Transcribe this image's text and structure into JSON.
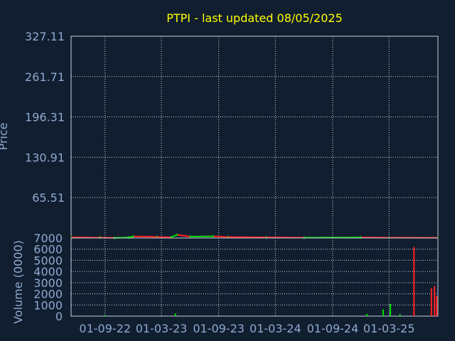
{
  "colors": {
    "background": "#111e30",
    "title": "#ffff00",
    "axis_text": "#8fa9cf",
    "grid": "#c8d2e0",
    "up": "#00dd00",
    "down": "#ff2020"
  },
  "chart_data": [
    {
      "type": "line",
      "title": "PTPI - last updated 08/05/2025",
      "ylabel": "Price",
      "ylim": [
        0,
        327.11
      ],
      "yticks": [
        65.51,
        130.91,
        196.31,
        261.71,
        327.11
      ],
      "ytick_labels": [
        "65.51",
        "130.91",
        "196.31",
        "261.71",
        "327.11"
      ],
      "grid": true,
      "x_range": [
        "2022-05-15",
        "2025-08-05"
      ],
      "series": [
        {
          "values": [
            [
              "2022-05-15",
              1.0
            ],
            [
              "2022-08-15",
              0.9
            ],
            [
              "2022-10-01",
              0.2
            ],
            [
              "2022-11-15",
              0.8
            ],
            [
              "2022-12-01",
              2.6
            ],
            [
              "2023-02-15",
              1.8
            ],
            [
              "2023-04-01",
              1.2
            ],
            [
              "2023-04-20",
              5.2
            ],
            [
              "2023-06-01",
              2.3
            ],
            [
              "2023-08-15",
              2.8
            ],
            [
              "2023-10-01",
              1.6
            ],
            [
              "2024-02-01",
              1.0
            ],
            [
              "2024-06-01",
              0.6
            ],
            [
              "2024-12-01",
              0.8
            ],
            [
              "2025-03-01",
              0.6
            ],
            [
              "2025-08-05",
              0.5
            ]
          ]
        }
      ]
    },
    {
      "type": "bar",
      "ylabel": "Volume (0000)",
      "ylim": [
        0,
        7000
      ],
      "yticks": [
        0,
        1000,
        2000,
        3000,
        4000,
        5000,
        6000,
        7000
      ],
      "ytick_labels": [
        "0",
        "1000",
        "2000",
        "3000",
        "4000",
        "5000",
        "6000",
        "7000"
      ],
      "xtick_labels": [
        "01-09-22",
        "01-03-23",
        "01-09-23",
        "01-03-24",
        "01-09-24",
        "01-03-25"
      ],
      "xtick_dates": [
        "2022-09-01",
        "2023-03-01",
        "2023-09-01",
        "2024-03-01",
        "2024-09-01",
        "2025-03-01"
      ],
      "bars": [
        {
          "date": "2022-09-01",
          "value": 80,
          "dir": "up"
        },
        {
          "date": "2023-04-15",
          "value": 250,
          "dir": "up"
        },
        {
          "date": "2024-12-20",
          "value": 200,
          "dir": "up"
        },
        {
          "date": "2025-02-10",
          "value": 600,
          "dir": "up"
        },
        {
          "date": "2025-03-05",
          "value": 1100,
          "dir": "up"
        },
        {
          "date": "2025-04-05",
          "value": 180,
          "dir": "up"
        },
        {
          "date": "2025-05-20",
          "value": 6200,
          "dir": "down"
        },
        {
          "date": "2025-07-15",
          "value": 2500,
          "dir": "down"
        },
        {
          "date": "2025-07-25",
          "value": 2700,
          "dir": "down"
        },
        {
          "date": "2025-08-01",
          "value": 1800,
          "dir": "down"
        }
      ]
    }
  ]
}
